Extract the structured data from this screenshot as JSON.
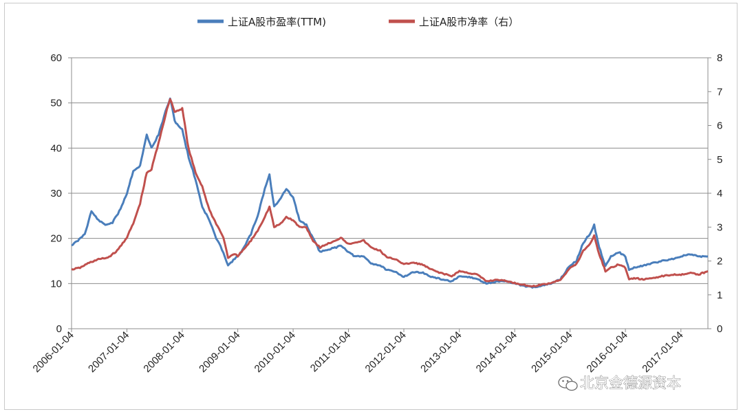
{
  "chart_data": {
    "type": "line",
    "title": "",
    "legend_position": "top-center",
    "grid": "horizontal",
    "x_tick_labels": [
      "2006-01-04",
      "2007-01-04",
      "2008-01-04",
      "2009-01-04",
      "2010-01-04",
      "2011-01-04",
      "2012-01-04",
      "2013-01-04",
      "2014-01-04",
      "2015-01-04",
      "2016-01-04",
      "2017-01-04"
    ],
    "x_range": [
      "2006-01-04",
      "2017-07-01"
    ],
    "y_left": {
      "ticks": [
        "0",
        "10",
        "20",
        "30",
        "40",
        "50",
        "60"
      ],
      "ylim": [
        0,
        60
      ]
    },
    "y_right": {
      "ticks": [
        "0",
        "1",
        "2",
        "3",
        "4",
        "5",
        "6",
        "7",
        "8"
      ],
      "ylim": [
        0,
        8
      ]
    },
    "series": [
      {
        "name": "上证A股市盈率(TTM)",
        "axis": "left",
        "color": "#4a7ebb",
        "points": [
          [
            "2006-01-04",
            18.5
          ],
          [
            "2006-02-15",
            19.5
          ],
          [
            "2006-04-01",
            21
          ],
          [
            "2006-05-15",
            26
          ],
          [
            "2006-07-01",
            24
          ],
          [
            "2006-08-15",
            23
          ],
          [
            "2006-10-01",
            23.5
          ],
          [
            "2006-11-15",
            26
          ],
          [
            "2007-01-04",
            30
          ],
          [
            "2007-02-15",
            35
          ],
          [
            "2007-04-01",
            36
          ],
          [
            "2007-05-15",
            43
          ],
          [
            "2007-06-15",
            40
          ],
          [
            "2007-08-01",
            43
          ],
          [
            "2007-09-15",
            48
          ],
          [
            "2007-10-16",
            51
          ],
          [
            "2007-11-15",
            46
          ],
          [
            "2008-01-04",
            44
          ],
          [
            "2008-02-15",
            38
          ],
          [
            "2008-04-01",
            33
          ],
          [
            "2008-05-15",
            27
          ],
          [
            "2008-07-01",
            24
          ],
          [
            "2008-08-15",
            20
          ],
          [
            "2008-10-01",
            17
          ],
          [
            "2008-11-01",
            14
          ],
          [
            "2008-12-15",
            15.5
          ],
          [
            "2009-01-04",
            16
          ],
          [
            "2009-02-15",
            18
          ],
          [
            "2009-04-01",
            21
          ],
          [
            "2009-05-15",
            25
          ],
          [
            "2009-07-01",
            31
          ],
          [
            "2009-08-01",
            34
          ],
          [
            "2009-09-01",
            27
          ],
          [
            "2009-10-15",
            29
          ],
          [
            "2009-11-20",
            31
          ],
          [
            "2010-01-04",
            29
          ],
          [
            "2010-02-15",
            24
          ],
          [
            "2010-04-01",
            23
          ],
          [
            "2010-05-15",
            20
          ],
          [
            "2010-07-01",
            17
          ],
          [
            "2010-08-15",
            17.5
          ],
          [
            "2010-10-15",
            18
          ],
          [
            "2010-11-15",
            18.5
          ],
          [
            "2011-01-04",
            17
          ],
          [
            "2011-02-15",
            16
          ],
          [
            "2011-04-15",
            16
          ],
          [
            "2011-06-01",
            14.5
          ],
          [
            "2011-08-01",
            14
          ],
          [
            "2011-09-15",
            13
          ],
          [
            "2011-11-15",
            12.5
          ],
          [
            "2012-01-04",
            11.5
          ],
          [
            "2012-03-01",
            12.5
          ],
          [
            "2012-05-01",
            12.5
          ],
          [
            "2012-07-01",
            11.5
          ],
          [
            "2012-09-01",
            11
          ],
          [
            "2012-11-15",
            10.5
          ],
          [
            "2013-01-04",
            11.5
          ],
          [
            "2013-03-01",
            11.5
          ],
          [
            "2013-05-01",
            11
          ],
          [
            "2013-07-01",
            10
          ],
          [
            "2013-09-15",
            10.5
          ],
          [
            "2013-11-15",
            10.5
          ],
          [
            "2014-01-04",
            10
          ],
          [
            "2014-03-01",
            9.5
          ],
          [
            "2014-05-01",
            9.2
          ],
          [
            "2014-07-01",
            9.5
          ],
          [
            "2014-09-01",
            10
          ],
          [
            "2014-11-01",
            11
          ],
          [
            "2015-01-04",
            14
          ],
          [
            "2015-02-15",
            15
          ],
          [
            "2015-04-01",
            19
          ],
          [
            "2015-05-15",
            21
          ],
          [
            "2015-06-12",
            23
          ],
          [
            "2015-07-15",
            18
          ],
          [
            "2015-08-25",
            14
          ],
          [
            "2015-10-01",
            16
          ],
          [
            "2015-11-20",
            17
          ],
          [
            "2016-01-04",
            16
          ],
          [
            "2016-01-28",
            13
          ],
          [
            "2016-03-01",
            13.5
          ],
          [
            "2016-05-01",
            14
          ],
          [
            "2016-07-01",
            14.5
          ],
          [
            "2016-09-01",
            15
          ],
          [
            "2016-11-15",
            15.5
          ],
          [
            "2017-01-04",
            16
          ],
          [
            "2017-03-01",
            16.5
          ],
          [
            "2017-05-01",
            16
          ],
          [
            "2017-07-01",
            16
          ]
        ]
      },
      {
        "name": "上证A股市净率（右）",
        "axis": "right",
        "color": "#c0504d",
        "points": [
          [
            "2006-01-04",
            1.75
          ],
          [
            "2006-03-01",
            1.8
          ],
          [
            "2006-05-01",
            1.95
          ],
          [
            "2006-07-01",
            2.05
          ],
          [
            "2006-09-01",
            2.1
          ],
          [
            "2006-11-01",
            2.3
          ],
          [
            "2007-01-04",
            2.7
          ],
          [
            "2007-02-15",
            3.1
          ],
          [
            "2007-04-01",
            3.7
          ],
          [
            "2007-05-15",
            4.6
          ],
          [
            "2007-06-15",
            4.7
          ],
          [
            "2007-08-01",
            5.5
          ],
          [
            "2007-09-15",
            6.3
          ],
          [
            "2007-10-16",
            6.8
          ],
          [
            "2007-11-15",
            6.4
          ],
          [
            "2008-01-04",
            6.5
          ],
          [
            "2008-02-15",
            5.3
          ],
          [
            "2008-04-01",
            4.6
          ],
          [
            "2008-05-15",
            4.2
          ],
          [
            "2008-07-01",
            3.5
          ],
          [
            "2008-08-15",
            3.1
          ],
          [
            "2008-10-01",
            2.7
          ],
          [
            "2008-11-01",
            2.1
          ],
          [
            "2008-12-15",
            2.2
          ],
          [
            "2009-01-04",
            2.15
          ],
          [
            "2009-02-15",
            2.35
          ],
          [
            "2009-04-01",
            2.6
          ],
          [
            "2009-05-15",
            2.9
          ],
          [
            "2009-07-01",
            3.3
          ],
          [
            "2009-08-01",
            3.6
          ],
          [
            "2009-09-01",
            3.0
          ],
          [
            "2009-10-15",
            3.1
          ],
          [
            "2009-11-20",
            3.3
          ],
          [
            "2010-01-04",
            3.2
          ],
          [
            "2010-02-15",
            3.0
          ],
          [
            "2010-04-01",
            3.0
          ],
          [
            "2010-05-15",
            2.6
          ],
          [
            "2010-07-01",
            2.4
          ],
          [
            "2010-08-15",
            2.5
          ],
          [
            "2010-10-15",
            2.6
          ],
          [
            "2010-11-15",
            2.7
          ],
          [
            "2011-01-04",
            2.5
          ],
          [
            "2011-02-15",
            2.55
          ],
          [
            "2011-04-15",
            2.6
          ],
          [
            "2011-06-01",
            2.4
          ],
          [
            "2011-08-01",
            2.3
          ],
          [
            "2011-09-15",
            2.1
          ],
          [
            "2011-11-15",
            2.05
          ],
          [
            "2012-01-04",
            1.9
          ],
          [
            "2012-03-01",
            1.95
          ],
          [
            "2012-05-01",
            1.9
          ],
          [
            "2012-07-01",
            1.75
          ],
          [
            "2012-09-01",
            1.65
          ],
          [
            "2012-11-15",
            1.55
          ],
          [
            "2013-01-04",
            1.7
          ],
          [
            "2013-03-01",
            1.65
          ],
          [
            "2013-05-01",
            1.6
          ],
          [
            "2013-07-01",
            1.4
          ],
          [
            "2013-09-15",
            1.45
          ],
          [
            "2013-11-15",
            1.4
          ],
          [
            "2014-01-04",
            1.35
          ],
          [
            "2014-03-01",
            1.3
          ],
          [
            "2014-05-01",
            1.25
          ],
          [
            "2014-07-01",
            1.3
          ],
          [
            "2014-09-01",
            1.35
          ],
          [
            "2014-11-01",
            1.45
          ],
          [
            "2015-01-04",
            1.8
          ],
          [
            "2015-02-15",
            1.9
          ],
          [
            "2015-04-01",
            2.3
          ],
          [
            "2015-05-15",
            2.5
          ],
          [
            "2015-06-12",
            2.75
          ],
          [
            "2015-07-15",
            2.2
          ],
          [
            "2015-08-25",
            1.7
          ],
          [
            "2015-10-01",
            1.8
          ],
          [
            "2015-11-20",
            1.9
          ],
          [
            "2016-01-04",
            1.8
          ],
          [
            "2016-01-28",
            1.45
          ],
          [
            "2016-03-01",
            1.5
          ],
          [
            "2016-05-01",
            1.45
          ],
          [
            "2016-07-01",
            1.5
          ],
          [
            "2016-09-01",
            1.55
          ],
          [
            "2016-11-15",
            1.6
          ],
          [
            "2017-01-04",
            1.6
          ],
          [
            "2017-03-01",
            1.65
          ],
          [
            "2017-05-01",
            1.6
          ],
          [
            "2017-07-01",
            1.7
          ]
        ]
      }
    ]
  },
  "watermark": {
    "text": "北京金德源资本",
    "icon": "wechat-icon"
  }
}
